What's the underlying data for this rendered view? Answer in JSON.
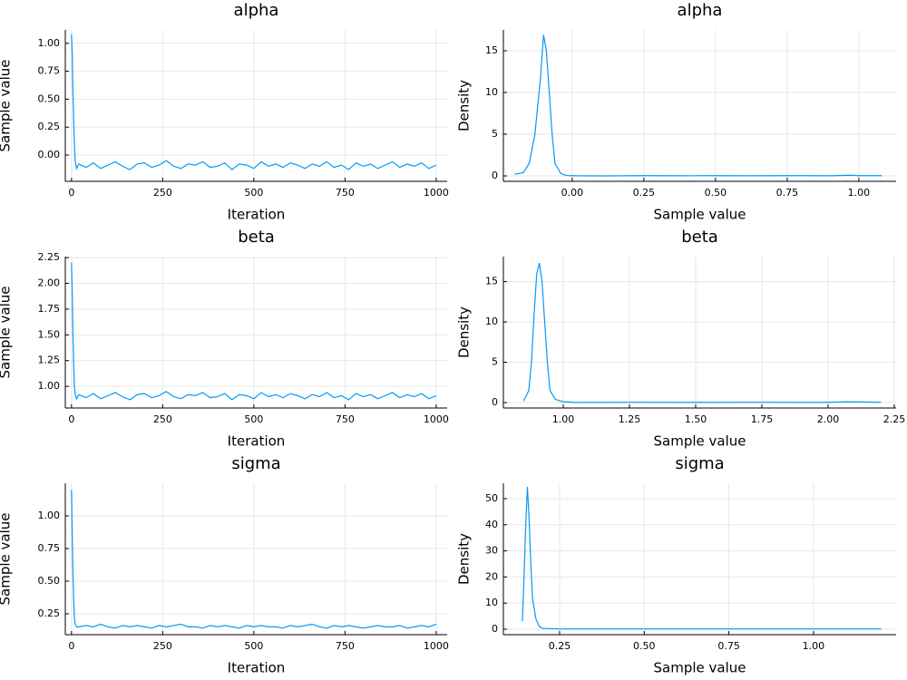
{
  "chart_data": [
    {
      "type": "line",
      "title": "alpha",
      "xlabel": "Iteration",
      "ylabel": "Sample value",
      "color": "#009af9",
      "x": [
        0,
        2,
        4,
        6,
        8,
        10,
        14,
        20,
        40,
        60,
        80,
        100,
        120,
        140,
        160,
        180,
        200,
        220,
        240,
        260,
        280,
        300,
        320,
        340,
        360,
        380,
        400,
        420,
        440,
        460,
        480,
        500,
        520,
        540,
        560,
        580,
        600,
        620,
        640,
        660,
        680,
        700,
        720,
        740,
        760,
        780,
        800,
        820,
        840,
        860,
        880,
        900,
        920,
        940,
        960,
        980,
        1000
      ],
      "values": [
        1.08,
        0.9,
        0.55,
        0.3,
        0.1,
        -0.05,
        -0.12,
        -0.08,
        -0.11,
        -0.07,
        -0.12,
        -0.09,
        -0.06,
        -0.1,
        -0.13,
        -0.08,
        -0.07,
        -0.11,
        -0.09,
        -0.05,
        -0.1,
        -0.12,
        -0.08,
        -0.09,
        -0.06,
        -0.11,
        -0.1,
        -0.07,
        -0.13,
        -0.08,
        -0.09,
        -0.12,
        -0.06,
        -0.1,
        -0.08,
        -0.11,
        -0.07,
        -0.09,
        -0.12,
        -0.08,
        -0.1,
        -0.06,
        -0.11,
        -0.09,
        -0.13,
        -0.07,
        -0.1,
        -0.08,
        -0.12,
        -0.09,
        -0.06,
        -0.11,
        -0.08,
        -0.1,
        -0.07,
        -0.12,
        -0.09
      ],
      "xlim": [
        -17,
        1030
      ],
      "xticks": [
        0,
        250,
        500,
        750,
        1000
      ],
      "ylim": [
        -0.235,
        1.12
      ],
      "yticks": [
        {
          "value": 0,
          "label": "0.00"
        },
        0.25,
        {
          "value": 0.5,
          "label": "0.50"
        },
        0.75,
        {
          "value": 1,
          "label": "1.00"
        }
      ]
    },
    {
      "type": "line",
      "title": "alpha",
      "xlabel": "Sample value",
      "ylabel": "Density",
      "color": "#009af9",
      "x": [
        -0.2,
        -0.17,
        -0.15,
        -0.13,
        -0.11,
        -0.1,
        -0.09,
        -0.08,
        -0.07,
        -0.06,
        -0.04,
        -0.02,
        0,
        0.1,
        0.25,
        0.4,
        0.5,
        0.6,
        0.75,
        0.9,
        0.97,
        1.0,
        1.08
      ],
      "values": [
        0.2,
        0.4,
        1.5,
        5,
        12,
        16.9,
        15,
        10,
        5,
        1.5,
        0.3,
        0.05,
        0.02,
        0,
        0.03,
        0.02,
        0.03,
        0.02,
        0.03,
        0.02,
        0.08,
        0.03,
        0.03
      ],
      "xlim": [
        -0.24,
        1.13
      ],
      "xticks": [
        {
          "value": 0,
          "label": "0.00"
        },
        0.25,
        {
          "value": 0.5,
          "label": "0.50"
        },
        0.75,
        {
          "value": 1,
          "label": "1.00"
        }
      ],
      "ylim": [
        -0.65,
        17.5
      ],
      "yticks": [
        0,
        5,
        10,
        15
      ]
    },
    {
      "type": "line",
      "title": "beta",
      "xlabel": "Iteration",
      "ylabel": "Sample value",
      "color": "#009af9",
      "x": [
        0,
        2,
        4,
        6,
        8,
        10,
        14,
        20,
        40,
        60,
        80,
        100,
        120,
        140,
        160,
        180,
        200,
        220,
        240,
        260,
        280,
        300,
        320,
        340,
        360,
        380,
        400,
        420,
        440,
        460,
        480,
        500,
        520,
        540,
        560,
        580,
        600,
        620,
        640,
        660,
        680,
        700,
        720,
        740,
        760,
        780,
        800,
        820,
        840,
        860,
        880,
        900,
        920,
        940,
        960,
        980,
        1000
      ],
      "values": [
        2.2,
        1.9,
        1.5,
        1.2,
        1.0,
        0.93,
        0.88,
        0.92,
        0.89,
        0.93,
        0.88,
        0.91,
        0.94,
        0.9,
        0.87,
        0.92,
        0.93,
        0.89,
        0.91,
        0.95,
        0.9,
        0.88,
        0.92,
        0.91,
        0.94,
        0.89,
        0.9,
        0.93,
        0.87,
        0.92,
        0.91,
        0.88,
        0.94,
        0.9,
        0.92,
        0.89,
        0.93,
        0.91,
        0.88,
        0.92,
        0.9,
        0.94,
        0.89,
        0.91,
        0.87,
        0.93,
        0.9,
        0.92,
        0.88,
        0.91,
        0.94,
        0.89,
        0.92,
        0.9,
        0.93,
        0.88,
        0.91
      ],
      "xlim": [
        -17,
        1030
      ],
      "xticks": [
        0,
        250,
        500,
        750,
        1000
      ],
      "ylim": [
        0.79,
        2.26
      ],
      "yticks": [
        {
          "value": 1,
          "label": "1.00"
        },
        1.25,
        {
          "value": 1.5,
          "label": "1.50"
        },
        1.75,
        {
          "value": 2,
          "label": "2.00"
        },
        2.25
      ]
    },
    {
      "type": "line",
      "title": "beta",
      "xlabel": "Sample value",
      "ylabel": "Density",
      "color": "#009af9",
      "x": [
        0.85,
        0.87,
        0.88,
        0.89,
        0.9,
        0.91,
        0.92,
        0.93,
        0.94,
        0.95,
        0.97,
        1.0,
        1.05,
        1.25,
        1.5,
        1.75,
        2.0,
        2.07,
        2.2
      ],
      "values": [
        0.2,
        1.5,
        5,
        11,
        16,
        17.3,
        15,
        10,
        5,
        1.5,
        0.4,
        0.1,
        0.02,
        0.04,
        0.03,
        0.04,
        0.03,
        0.1,
        0.05
      ],
      "xlim": [
        0.774,
        2.257
      ],
      "xticks": [
        {
          "value": 1,
          "label": "1.00"
        },
        1.25,
        {
          "value": 1.5,
          "label": "1.50"
        },
        1.75,
        {
          "value": 2,
          "label": "2.00"
        },
        2.25
      ],
      "ylim": [
        -0.67,
        18.1
      ],
      "yticks": [
        0,
        5,
        10,
        15
      ]
    },
    {
      "type": "line",
      "title": "sigma",
      "xlabel": "Iteration",
      "ylabel": "Sample value",
      "color": "#009af9",
      "x": [
        0,
        2,
        4,
        6,
        8,
        10,
        14,
        20,
        40,
        60,
        80,
        100,
        120,
        140,
        160,
        180,
        200,
        220,
        240,
        260,
        280,
        300,
        320,
        340,
        360,
        380,
        400,
        420,
        440,
        460,
        480,
        500,
        520,
        540,
        560,
        580,
        600,
        620,
        640,
        660,
        680,
        700,
        720,
        740,
        760,
        780,
        800,
        820,
        840,
        860,
        880,
        900,
        920,
        940,
        960,
        980,
        1000
      ],
      "values": [
        1.2,
        0.85,
        0.55,
        0.35,
        0.22,
        0.17,
        0.15,
        0.15,
        0.16,
        0.15,
        0.17,
        0.15,
        0.14,
        0.16,
        0.15,
        0.16,
        0.15,
        0.14,
        0.16,
        0.15,
        0.16,
        0.17,
        0.15,
        0.15,
        0.14,
        0.16,
        0.15,
        0.16,
        0.15,
        0.14,
        0.16,
        0.15,
        0.16,
        0.15,
        0.15,
        0.14,
        0.16,
        0.15,
        0.16,
        0.17,
        0.15,
        0.14,
        0.16,
        0.15,
        0.16,
        0.15,
        0.14,
        0.15,
        0.16,
        0.15,
        0.15,
        0.16,
        0.14,
        0.15,
        0.16,
        0.15,
        0.17
      ],
      "xlim": [
        -17,
        1030
      ],
      "xticks": [
        0,
        250,
        500,
        750,
        1000
      ],
      "ylim": [
        0.09,
        1.25
      ],
      "yticks": [
        0.25,
        {
          "value": 0.5,
          "label": "0.50"
        },
        0.75,
        {
          "value": 1,
          "label": "1.00"
        }
      ]
    },
    {
      "type": "line",
      "title": "sigma",
      "xlabel": "Sample value",
      "ylabel": "Density",
      "color": "#009af9",
      "x": [
        0.14,
        0.145,
        0.15,
        0.155,
        0.16,
        0.165,
        0.17,
        0.18,
        0.19,
        0.2,
        0.25,
        0.5,
        0.75,
        1.0,
        1.2
      ],
      "values": [
        3,
        20,
        40,
        54.5,
        42,
        25,
        12,
        4,
        1,
        0.3,
        0.1,
        0.1,
        0.1,
        0.1,
        0.1
      ],
      "xlim": [
        0.084,
        1.244
      ],
      "xticks": [
        0.25,
        {
          "value": 0.5,
          "label": "0.50"
        },
        0.75,
        {
          "value": 1,
          "label": "1.00"
        }
      ],
      "ylim": [
        -2.1,
        55.9
      ],
      "yticks": [
        0,
        10,
        20,
        30,
        40,
        50
      ]
    }
  ]
}
